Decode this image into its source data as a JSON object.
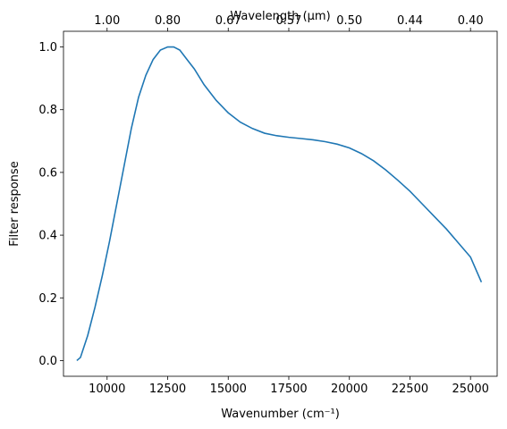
{
  "chart_data": {
    "type": "line",
    "xlabel": "Wavenumber (cm⁻¹)",
    "ylabel": "Filter response",
    "top_xlabel": "Wavelength (μm)",
    "xlim": [
      8200,
      26100
    ],
    "ylim": [
      -0.05,
      1.05
    ],
    "x_ticks": [
      10000,
      12500,
      15000,
      17500,
      20000,
      22500,
      25000
    ],
    "x_tick_labels": [
      "10000",
      "12500",
      "15000",
      "17500",
      "20000",
      "22500",
      "25000"
    ],
    "y_ticks": [
      0.0,
      0.2,
      0.4,
      0.6,
      0.8,
      1.0
    ],
    "y_tick_labels": [
      "0.0",
      "0.2",
      "0.4",
      "0.6",
      "0.8",
      "1.0"
    ],
    "top_ticks_wavenumber": [
      10000,
      12500,
      15000,
      17500,
      20000,
      22500,
      25000
    ],
    "top_tick_labels": [
      "1.00",
      "0.80",
      "0.67",
      "0.57",
      "0.50",
      "0.44",
      "0.40"
    ],
    "grid": false,
    "series": [
      {
        "color": "#1f77b4",
        "x": [
          8750,
          8900,
          9200,
          9500,
          9800,
          10100,
          10400,
          10700,
          11000,
          11300,
          11600,
          11900,
          12200,
          12500,
          12750,
          13000,
          13300,
          13600,
          14000,
          14500,
          15000,
          15500,
          16000,
          16500,
          17000,
          17500,
          18000,
          18500,
          19000,
          19500,
          20000,
          20500,
          21000,
          21500,
          22000,
          22500,
          23000,
          23500,
          24000,
          24500,
          25000,
          25450
        ],
        "y": [
          0.0,
          0.01,
          0.08,
          0.17,
          0.27,
          0.38,
          0.5,
          0.62,
          0.74,
          0.84,
          0.91,
          0.96,
          0.99,
          1.0,
          1.0,
          0.99,
          0.96,
          0.93,
          0.88,
          0.83,
          0.79,
          0.76,
          0.74,
          0.725,
          0.717,
          0.712,
          0.708,
          0.704,
          0.698,
          0.69,
          0.678,
          0.66,
          0.637,
          0.608,
          0.575,
          0.54,
          0.5,
          0.46,
          0.42,
          0.375,
          0.33,
          0.25
        ]
      }
    ]
  }
}
